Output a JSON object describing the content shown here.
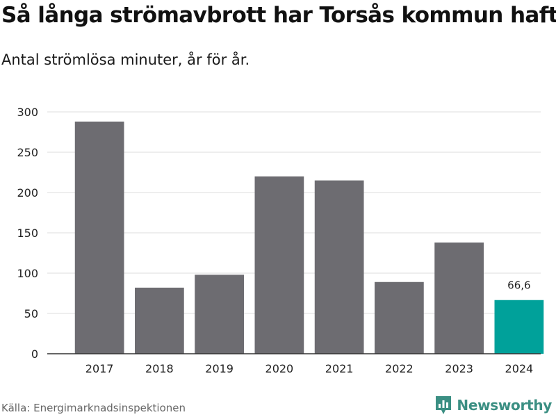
{
  "header": {
    "title": "Så långa strömavbrott har Torsås kommun haft",
    "subtitle": "Antal strömlösa minuter, år för år."
  },
  "footer": {
    "source": "Källa: Energimarknadsinspektionen",
    "brand": "Newsworthy",
    "brand_icon": "newsworthy-logo-icon",
    "brand_color": "#3b8f83"
  },
  "chart_data": {
    "type": "bar",
    "title": "Så långa strömavbrott har Torsås kommun haft",
    "subtitle": "Antal strömlösa minuter, år för år.",
    "xlabel": "",
    "ylabel": "",
    "categories": [
      "2017",
      "2018",
      "2019",
      "2020",
      "2021",
      "2022",
      "2023",
      "2024"
    ],
    "values": [
      288,
      82,
      98,
      220,
      215,
      89,
      138,
      66.6
    ],
    "ylim": [
      0,
      300
    ],
    "yticks": [
      0,
      50,
      100,
      150,
      200,
      250,
      300
    ],
    "grid": true,
    "highlight": {
      "category": "2024",
      "label": "66,6"
    },
    "colors": {
      "bar": "#6d6c71",
      "highlight": "#00a19a",
      "grid": "#dcdcdc",
      "axis": "#333333"
    }
  }
}
